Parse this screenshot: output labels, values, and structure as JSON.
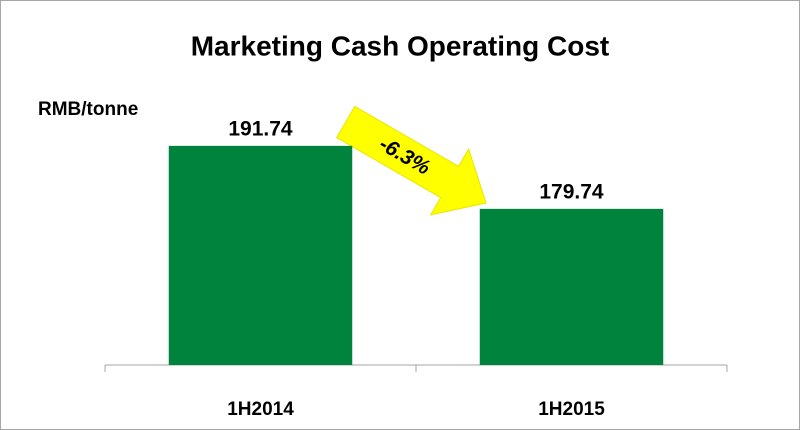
{
  "chart_data": {
    "type": "bar",
    "title": "Marketing Cash Operating Cost",
    "y_axis_label": "RMB/tonne",
    "annotation": "-6.3%",
    "categories": [
      "1H2014",
      "1H2015"
    ],
    "values": [
      191.74,
      179.74
    ],
    "color": "#00843d",
    "ylim": [
      150,
      200
    ]
  }
}
